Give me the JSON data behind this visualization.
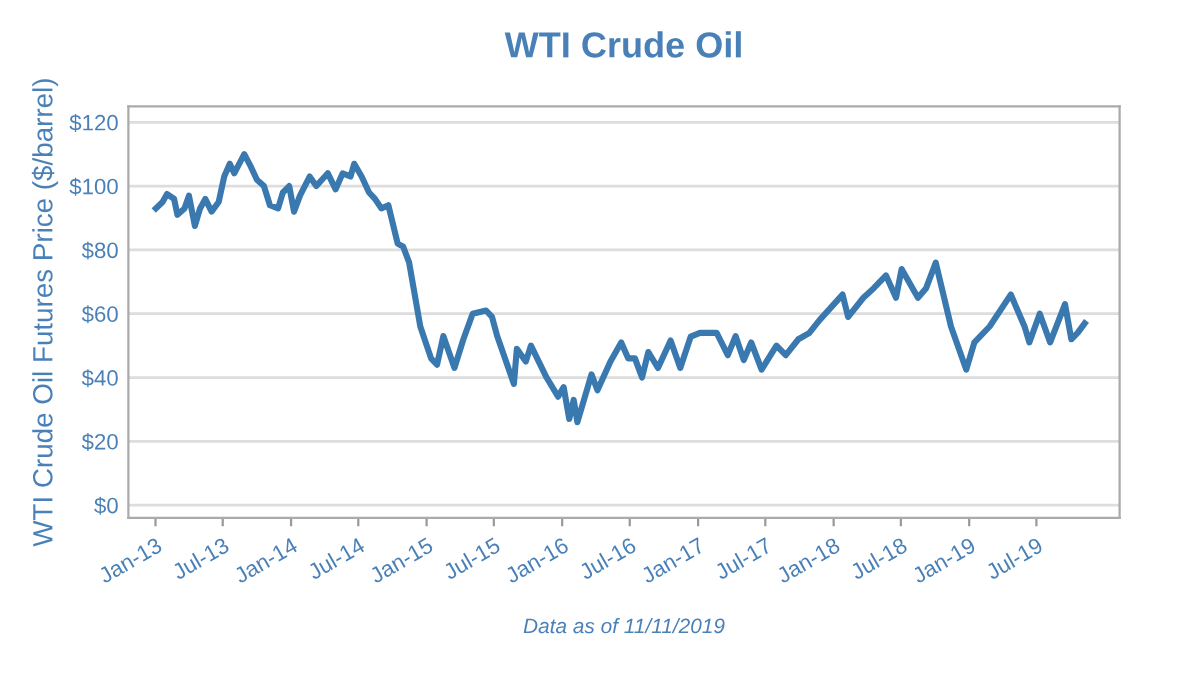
{
  "chart_data": {
    "type": "line",
    "title": "WTI Crude Oil",
    "ylabel": "WTI Crude Oil Futures Price ($/barrel)",
    "annotations": [
      "Data as of 11/11/2019"
    ],
    "x": [
      "2013-01-02",
      "2013-01-20",
      "2013-02-01",
      "2013-02-20",
      "2013-03-01",
      "2013-03-20",
      "2013-04-01",
      "2013-04-17",
      "2013-05-01",
      "2013-05-15",
      "2013-06-01",
      "2013-06-20",
      "2013-07-05",
      "2013-07-20",
      "2013-08-01",
      "2013-08-28",
      "2013-09-15",
      "2013-10-01",
      "2013-10-20",
      "2013-11-05",
      "2013-11-27",
      "2013-12-10",
      "2013-12-27",
      "2014-01-09",
      "2014-01-25",
      "2014-02-20",
      "2014-03-10",
      "2014-03-25",
      "2014-04-10",
      "2014-05-01",
      "2014-05-20",
      "2014-06-10",
      "2014-06-20",
      "2014-07-10",
      "2014-07-30",
      "2014-08-15",
      "2014-09-01",
      "2014-09-20",
      "2014-10-15",
      "2014-10-30",
      "2014-11-15",
      "2014-12-15",
      "2015-01-13",
      "2015-01-29",
      "2015-02-15",
      "2015-03-17",
      "2015-04-10",
      "2015-05-05",
      "2015-06-10",
      "2015-06-26",
      "2015-07-10",
      "2015-08-24",
      "2015-09-01",
      "2015-09-25",
      "2015-10-09",
      "2015-11-20",
      "2015-12-21",
      "2016-01-05",
      "2016-01-20",
      "2016-02-01",
      "2016-02-11",
      "2016-03-20",
      "2016-04-05",
      "2016-05-10",
      "2016-06-08",
      "2016-06-27",
      "2016-07-15",
      "2016-08-03",
      "2016-08-20",
      "2016-09-15",
      "2016-10-19",
      "2016-11-14",
      "2016-12-12",
      "2017-01-06",
      "2017-02-20",
      "2017-03-22",
      "2017-04-12",
      "2017-05-04",
      "2017-05-24",
      "2017-06-21",
      "2017-07-31",
      "2017-08-25",
      "2017-09-28",
      "2017-10-27",
      "2017-11-24",
      "2018-01-25",
      "2018-02-09",
      "2018-03-22",
      "2018-04-19",
      "2018-05-22",
      "2018-06-18",
      "2018-07-03",
      "2018-08-16",
      "2018-09-07",
      "2018-10-03",
      "2018-11-13",
      "2018-12-24",
      "2019-01-15",
      "2019-02-25",
      "2019-04-23",
      "2019-05-30",
      "2019-06-12",
      "2019-07-10",
      "2019-08-07",
      "2019-09-16",
      "2019-10-03",
      "2019-10-20",
      "2019-11-08"
    ],
    "series": [
      {
        "color": "#3a78b0",
        "values": [
          93,
          95,
          97.5,
          96,
          91,
          93,
          97,
          87.5,
          93,
          96,
          92,
          95,
          103,
          107,
          104,
          110,
          106,
          102,
          100,
          94,
          93,
          98,
          100,
          92,
          97,
          103,
          100,
          102,
          104,
          99,
          104,
          103,
          107,
          103,
          98,
          96,
          93,
          94,
          82,
          81,
          76,
          56,
          46,
          44,
          53,
          43,
          52,
          60,
          61,
          59,
          53,
          38,
          49,
          45,
          50,
          40,
          34,
          37,
          27,
          33,
          26,
          41,
          36,
          45,
          51,
          46,
          46,
          40,
          48,
          43,
          51.6,
          43,
          52.8,
          54,
          54,
          47,
          53,
          45.5,
          51,
          42.5,
          50,
          47,
          52,
          53.9,
          58,
          66,
          59,
          65,
          68,
          72,
          65,
          74,
          65,
          68,
          76,
          56,
          42.5,
          51,
          56,
          66,
          56,
          51,
          60,
          51,
          63,
          52,
          54,
          57
        ]
      }
    ],
    "xlim": [
      "2012-10-20",
      "2020-02-10"
    ],
    "xticks": [
      {
        "value": "2013-01-01",
        "label": "Jan-13"
      },
      {
        "value": "2013-07-01",
        "label": "Jul-13"
      },
      {
        "value": "2014-01-01",
        "label": "Jan-14"
      },
      {
        "value": "2014-07-01",
        "label": "Jul-14"
      },
      {
        "value": "2015-01-01",
        "label": "Jan-15"
      },
      {
        "value": "2015-07-01",
        "label": "Jul-15"
      },
      {
        "value": "2016-01-01",
        "label": "Jan-16"
      },
      {
        "value": "2016-07-01",
        "label": "Jul-16"
      },
      {
        "value": "2017-01-01",
        "label": "Jan-17"
      },
      {
        "value": "2017-07-01",
        "label": "Jul-17"
      },
      {
        "value": "2018-01-01",
        "label": "Jan-18"
      },
      {
        "value": "2018-07-01",
        "label": "Jul-18"
      },
      {
        "value": "2019-01-01",
        "label": "Jan-19"
      },
      {
        "value": "2019-07-01",
        "label": "Jul-19"
      }
    ],
    "ylim": [
      -4,
      125
    ],
    "yticks": [
      {
        "value": 0,
        "label": "$0"
      },
      {
        "value": 20,
        "label": "$20"
      },
      {
        "value": 40,
        "label": "$40"
      },
      {
        "value": 60,
        "label": "$60"
      },
      {
        "value": 80,
        "label": "$80"
      },
      {
        "value": 100,
        "label": "$100"
      },
      {
        "value": 120,
        "label": "$120"
      }
    ],
    "grid": "y",
    "marker": "none",
    "line_style": "solid"
  }
}
